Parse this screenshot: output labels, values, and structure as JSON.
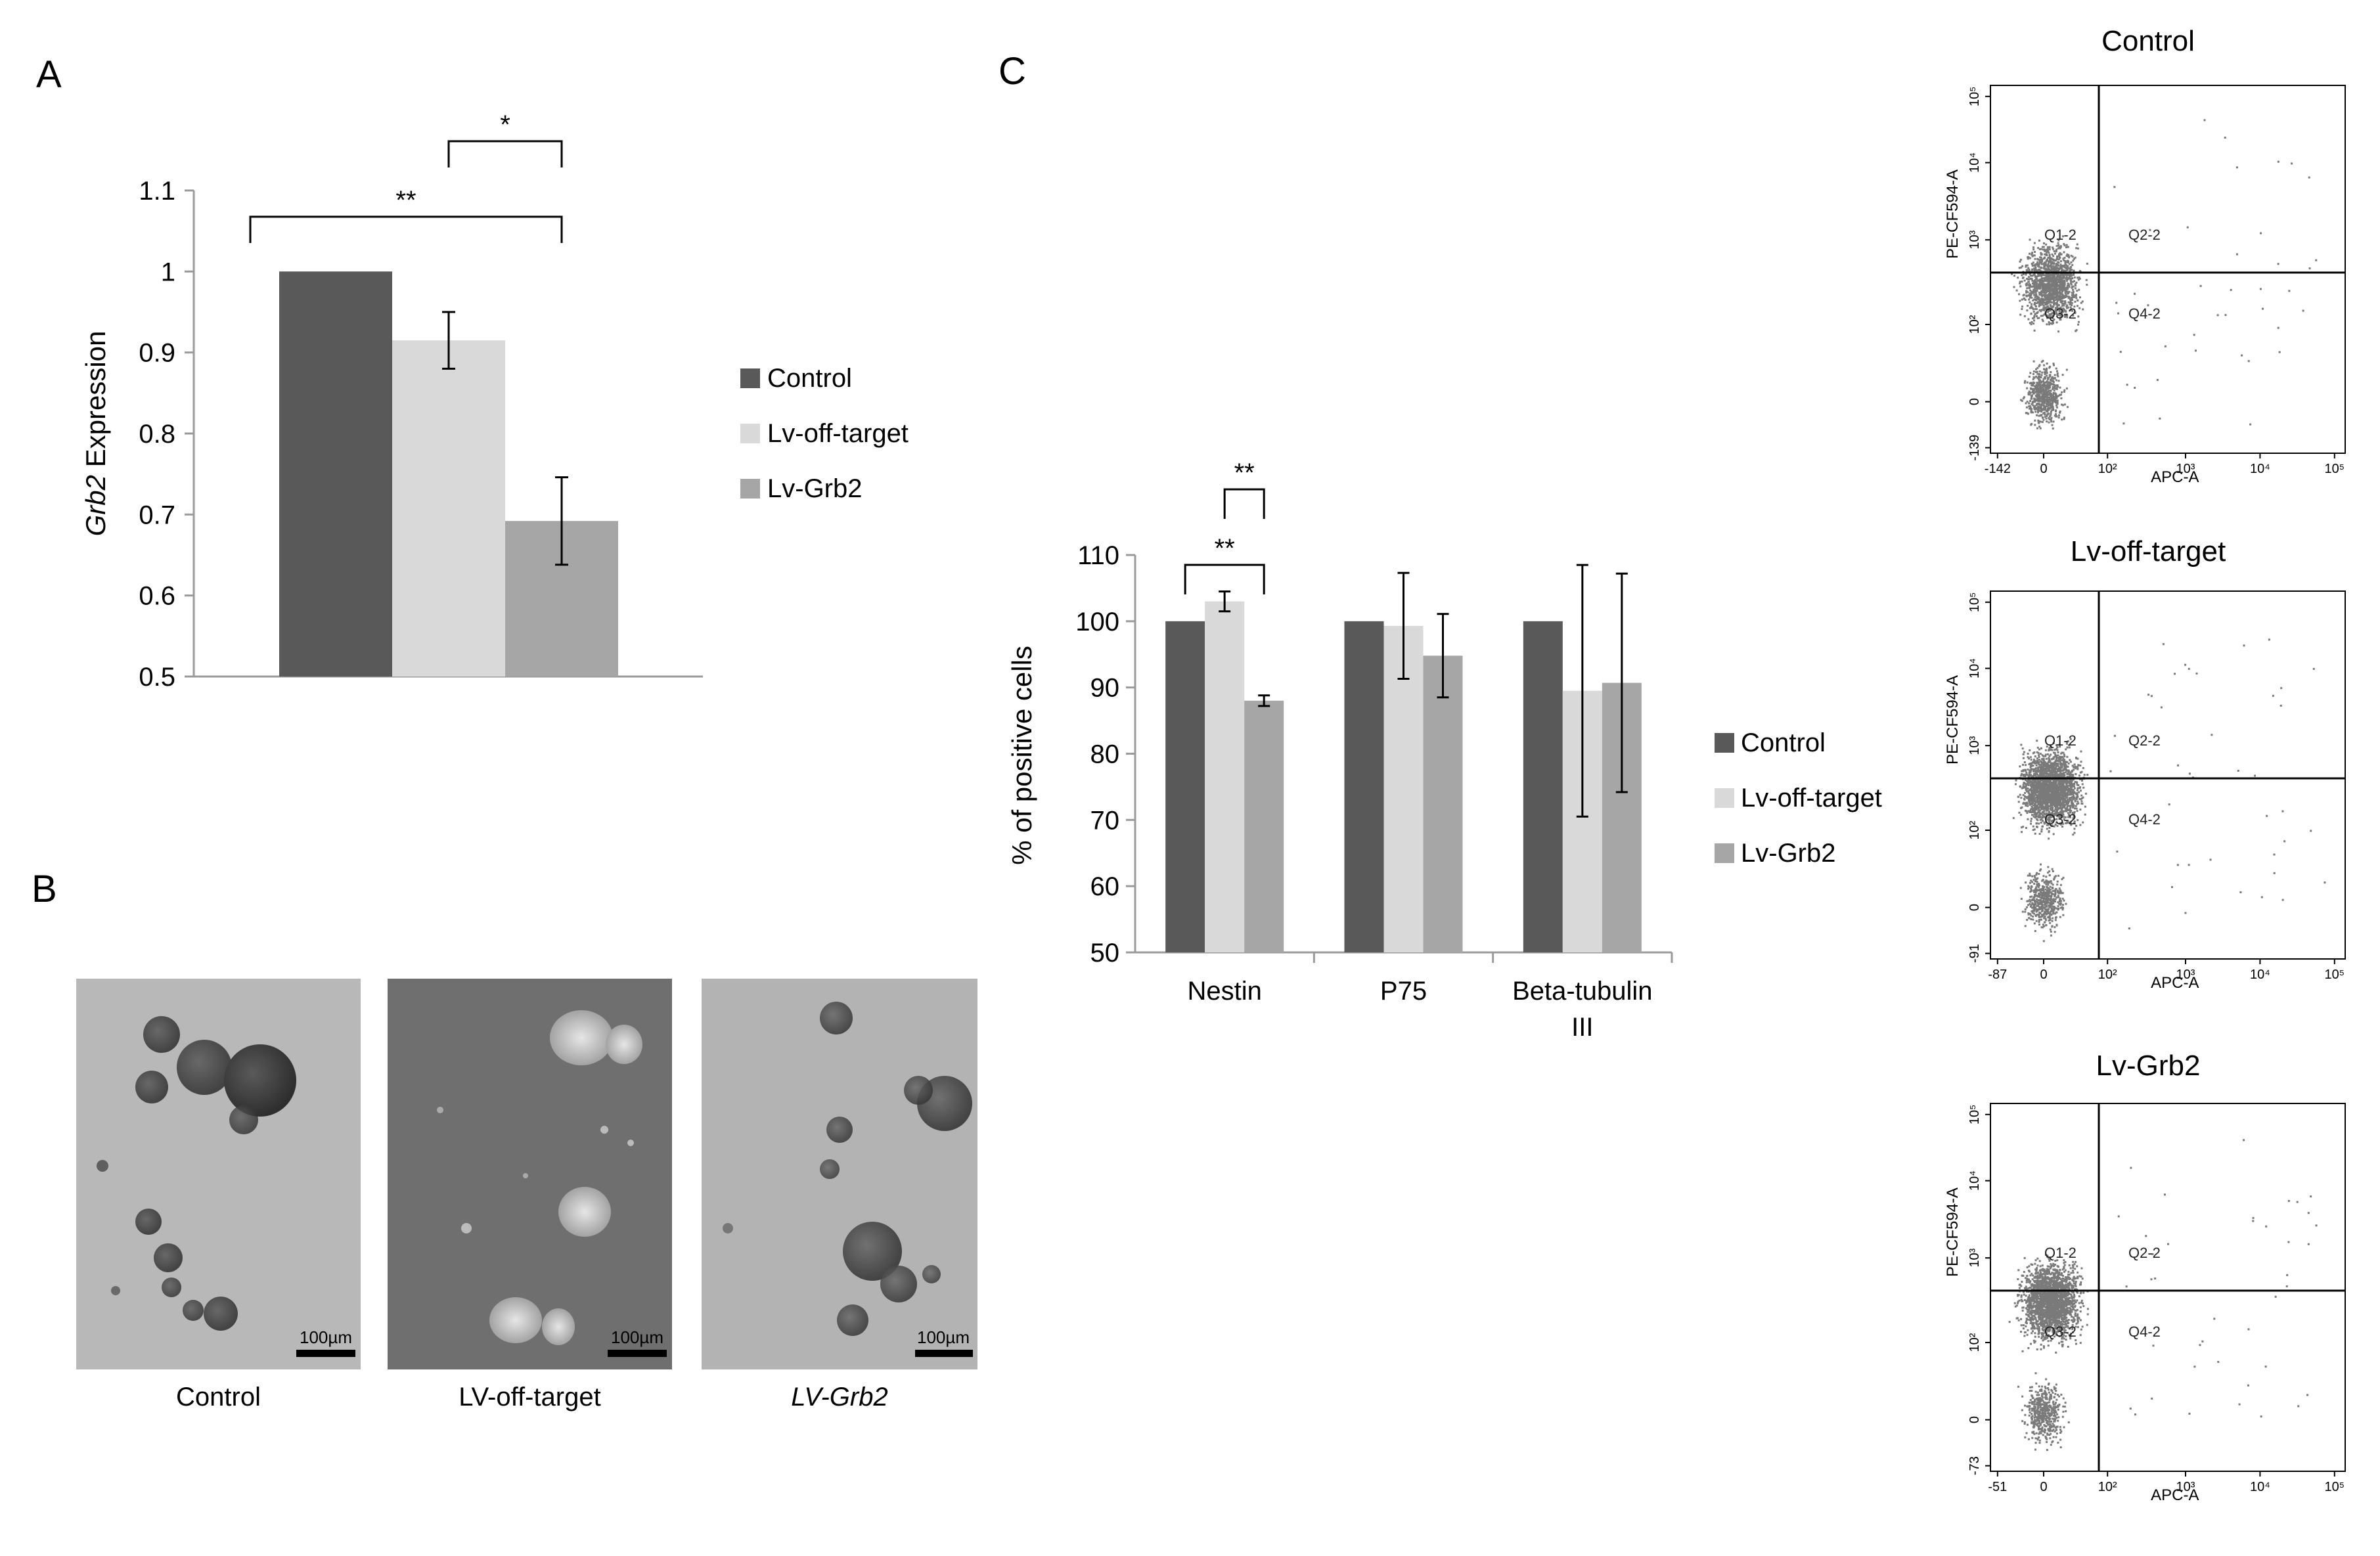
{
  "panels": {
    "a": "A",
    "b": "B",
    "c": "C"
  },
  "colors": {
    "control": "#595959",
    "off_target": "#d9d9d9",
    "grb2": "#a6a6a6"
  },
  "chart_data": [
    {
      "id": "A",
      "type": "bar",
      "ylabel_italic": "Grb2",
      "ylabel_rest": " Expression",
      "ylim": [
        0.5,
        1.1
      ],
      "yticks": [
        "1.1",
        "1",
        "0.9",
        "0.8",
        "0.7",
        "0.6",
        "0.5"
      ],
      "ytick_values": [
        1.1,
        1.0,
        0.9,
        0.8,
        0.7,
        0.6,
        0.5
      ],
      "series": [
        {
          "name": "Control",
          "values": [
            1.0
          ],
          "error": [
            0
          ]
        },
        {
          "name": "Lv-off-target",
          "values": [
            0.915
          ],
          "error": [
            0.035
          ]
        },
        {
          "name": "Lv-Grb2",
          "values": [
            0.692
          ],
          "error": [
            0.054
          ]
        }
      ],
      "annotations": [
        {
          "text": "*",
          "from": "Lv-off-target",
          "to": "Lv-Grb2"
        },
        {
          "text": "**",
          "from": "Control",
          "to": "Lv-Grb2"
        }
      ],
      "legend": [
        "Control",
        "Lv-off-target",
        "Lv-Grb2"
      ],
      "legend_position": "right"
    },
    {
      "id": "C",
      "type": "bar",
      "ylabel": "% of positive cells",
      "ylim": [
        50,
        110
      ],
      "yticks": [
        "110",
        "100",
        "90",
        "80",
        "70",
        "60",
        "50"
      ],
      "ytick_values": [
        110,
        100,
        90,
        80,
        70,
        60,
        50
      ],
      "categories": [
        "Nestin",
        "P75",
        "Beta-tubulin III"
      ],
      "category_lines": [
        [
          "Nestin"
        ],
        [
          "P75"
        ],
        [
          "Beta-tubulin",
          "III"
        ]
      ],
      "series": [
        {
          "name": "Control",
          "values": [
            100,
            100,
            100
          ],
          "error": [
            0,
            0,
            0
          ]
        },
        {
          "name": "Lv-off-target",
          "values": [
            103,
            99.3,
            89.5
          ],
          "error": [
            1.5,
            8,
            19
          ]
        },
        {
          "name": "Lv-Grb2",
          "values": [
            88,
            94.8,
            90.7
          ],
          "error": [
            0.8,
            6.3,
            16.5
          ]
        }
      ],
      "annotations": [
        {
          "text": "**",
          "category": "Nestin",
          "from": "Lv-off-target",
          "to": "Lv-Grb2"
        },
        {
          "text": "**",
          "category": "Nestin",
          "from": "Control",
          "to": "Lv-Grb2"
        }
      ],
      "legend": [
        "Control",
        "Lv-off-target",
        "Lv-Grb2"
      ],
      "legend_position": "right"
    }
  ],
  "microscopy": [
    {
      "caption": "Control",
      "scale": "100µm",
      "italic": false
    },
    {
      "caption": "LV-off-target",
      "scale": "100µm",
      "italic": false
    },
    {
      "caption": "LV-Grb2",
      "scale": "100µm",
      "italic": true
    }
  ],
  "facs": {
    "xlabel": "APC-A",
    "ylabel": "PE-CF594-A",
    "quadrants": [
      "Q1-2",
      "Q2-2",
      "Q3-2",
      "Q4-2"
    ],
    "plots": [
      {
        "title": "Control",
        "ytick_labels": [
          "10⁵",
          "10⁴",
          "10³",
          "10²",
          "0",
          "-139"
        ],
        "xtick_labels": [
          "-142",
          "0",
          "10²",
          "10³",
          "10⁴",
          "10⁵"
        ]
      },
      {
        "title": "Lv-off-target",
        "ytick_labels": [
          "10⁵",
          "10⁴",
          "10³",
          "10²",
          "0",
          "-91"
        ],
        "xtick_labels": [
          "-87",
          "0",
          "10²",
          "10³",
          "10⁴",
          "10⁵"
        ]
      },
      {
        "title": "Lv-Grb2",
        "ytick_labels": [
          "10⁵",
          "10⁴",
          "10³",
          "10²",
          "0",
          "-73"
        ],
        "xtick_labels": [
          "-51",
          "0",
          "10²",
          "10³",
          "10⁴",
          "10⁵"
        ]
      }
    ]
  }
}
